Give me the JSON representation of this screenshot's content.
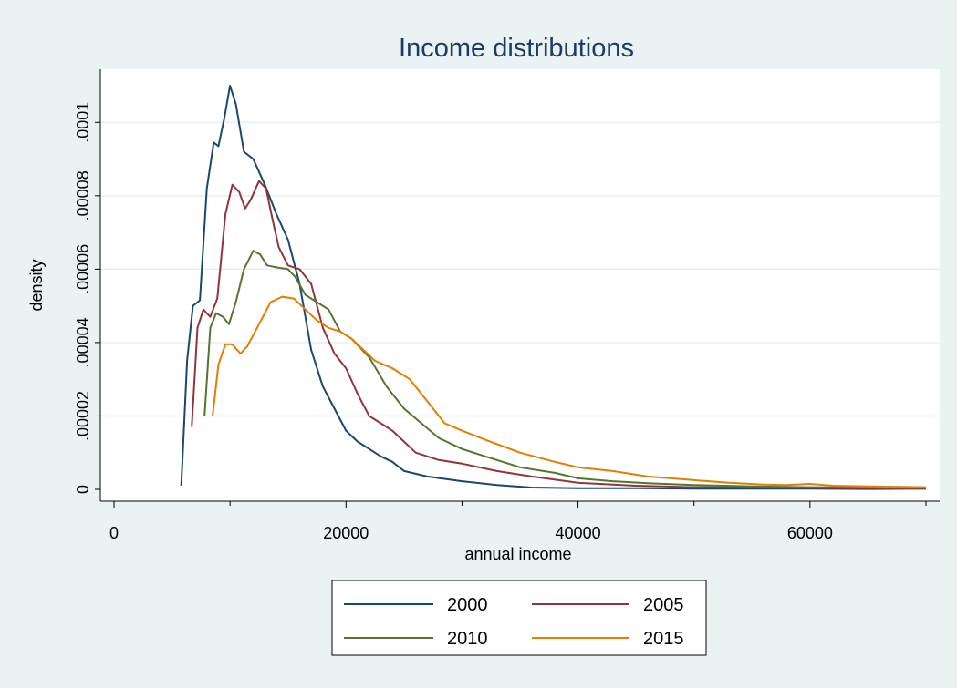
{
  "chart_data": {
    "type": "line",
    "title": "Income distributions",
    "xlabel": "annual income",
    "ylabel": "density",
    "xlim": [
      0,
      70000
    ],
    "ylim": [
      0,
      0.00011
    ],
    "xticks": [
      0,
      20000,
      40000,
      60000
    ],
    "xtick_labels": [
      "0",
      "20000",
      "40000",
      "60000"
    ],
    "yticks": [
      0,
      2e-05,
      4e-05,
      6e-05,
      8e-05,
      0.0001
    ],
    "ytick_labels": [
      "0",
      ".00002",
      ".00004",
      ".00006",
      ".00008",
      ".0001"
    ],
    "grid": true,
    "legend_position": "bottom",
    "series": [
      {
        "name": "2000",
        "color": "#1a476f",
        "points": [
          [
            5800,
            1e-06
          ],
          [
            6300,
            3.5e-05
          ],
          [
            6800,
            5e-05
          ],
          [
            7400,
            5.15e-05
          ],
          [
            8000,
            8.2e-05
          ],
          [
            8600,
            9.45e-05
          ],
          [
            9000,
            9.35e-05
          ],
          [
            9500,
            0.000101
          ],
          [
            10000,
            0.00011
          ],
          [
            10500,
            0.000105
          ],
          [
            11200,
            9.2e-05
          ],
          [
            12000,
            9e-05
          ],
          [
            13000,
            8.3e-05
          ],
          [
            14000,
            7.5e-05
          ],
          [
            15000,
            6.8e-05
          ],
          [
            16000,
            5.6e-05
          ],
          [
            17000,
            3.8e-05
          ],
          [
            18000,
            2.8e-05
          ],
          [
            19000,
            2.2e-05
          ],
          [
            20000,
            1.6e-05
          ],
          [
            21000,
            1.3e-05
          ],
          [
            22000,
            1.1e-05
          ],
          [
            23000,
            9e-06
          ],
          [
            24000,
            7.5e-06
          ],
          [
            25000,
            5e-06
          ],
          [
            27000,
            3.5e-06
          ],
          [
            30000,
            2.2e-06
          ],
          [
            33000,
            1.2e-06
          ],
          [
            36000,
            5e-07
          ],
          [
            40000,
            3e-07
          ],
          [
            45000,
            3e-07
          ],
          [
            50000,
            2e-07
          ],
          [
            55000,
            2e-07
          ],
          [
            60000,
            2e-07
          ],
          [
            65000,
            1e-07
          ],
          [
            70000,
            2e-07
          ]
        ]
      },
      {
        "name": "2005",
        "color": "#90353b",
        "points": [
          [
            6700,
            1.7e-05
          ],
          [
            7200,
            4.4e-05
          ],
          [
            7700,
            4.9e-05
          ],
          [
            8300,
            4.7e-05
          ],
          [
            8900,
            5.2e-05
          ],
          [
            9600,
            7.5e-05
          ],
          [
            10200,
            8.3e-05
          ],
          [
            10800,
            8.1e-05
          ],
          [
            11300,
            7.65e-05
          ],
          [
            11800,
            7.9e-05
          ],
          [
            12500,
            8.4e-05
          ],
          [
            13100,
            8.2e-05
          ],
          [
            13700,
            7.3e-05
          ],
          [
            14200,
            6.6e-05
          ],
          [
            15000,
            6.1e-05
          ],
          [
            16000,
            6e-05
          ],
          [
            17000,
            5.6e-05
          ],
          [
            18000,
            4.4e-05
          ],
          [
            19000,
            3.7e-05
          ],
          [
            20000,
            3.3e-05
          ],
          [
            21000,
            2.6e-05
          ],
          [
            22000,
            2e-05
          ],
          [
            23000,
            1.8e-05
          ],
          [
            24000,
            1.6e-05
          ],
          [
            25000,
            1.3e-05
          ],
          [
            26000,
            1e-05
          ],
          [
            28000,
            8e-06
          ],
          [
            30000,
            7e-06
          ],
          [
            33000,
            5e-06
          ],
          [
            36000,
            3.5e-06
          ],
          [
            40000,
            1.8e-06
          ],
          [
            45000,
            1e-06
          ],
          [
            50000,
            6e-07
          ],
          [
            55000,
            5e-07
          ],
          [
            60000,
            4e-07
          ],
          [
            65000,
            3e-07
          ],
          [
            70000,
            2e-07
          ]
        ]
      },
      {
        "name": "2010",
        "color": "#55752f",
        "points": [
          [
            7800,
            2e-05
          ],
          [
            8300,
            4.4e-05
          ],
          [
            8800,
            4.8e-05
          ],
          [
            9400,
            4.7e-05
          ],
          [
            9900,
            4.5e-05
          ],
          [
            10500,
            5.1e-05
          ],
          [
            11200,
            6e-05
          ],
          [
            12000,
            6.5e-05
          ],
          [
            12600,
            6.4e-05
          ],
          [
            13200,
            6.1e-05
          ],
          [
            14000,
            6.05e-05
          ],
          [
            15000,
            6e-05
          ],
          [
            15600,
            5.8e-05
          ],
          [
            16500,
            5.3e-05
          ],
          [
            17500,
            5.1e-05
          ],
          [
            18500,
            4.9e-05
          ],
          [
            19500,
            4.3e-05
          ],
          [
            20500,
            4.1e-05
          ],
          [
            22000,
            3.6e-05
          ],
          [
            23500,
            2.8e-05
          ],
          [
            25000,
            2.2e-05
          ],
          [
            26500,
            1.8e-05
          ],
          [
            28000,
            1.4e-05
          ],
          [
            30000,
            1.1e-05
          ],
          [
            32000,
            9e-06
          ],
          [
            35000,
            6e-06
          ],
          [
            38000,
            4.5e-06
          ],
          [
            40000,
            3e-06
          ],
          [
            43000,
            2.2e-06
          ],
          [
            46000,
            1.7e-06
          ],
          [
            50000,
            1.2e-06
          ],
          [
            55000,
            8e-07
          ],
          [
            60000,
            6e-07
          ],
          [
            65000,
            5e-07
          ],
          [
            70000,
            4e-07
          ]
        ]
      },
      {
        "name": "2015",
        "color": "#e37e00",
        "points": [
          [
            8500,
            2e-05
          ],
          [
            9000,
            3.4e-05
          ],
          [
            9600,
            3.95e-05
          ],
          [
            10200,
            3.95e-05
          ],
          [
            10900,
            3.7e-05
          ],
          [
            11500,
            3.9e-05
          ],
          [
            12500,
            4.5e-05
          ],
          [
            13500,
            5.1e-05
          ],
          [
            14500,
            5.25e-05
          ],
          [
            15500,
            5.2e-05
          ],
          [
            16500,
            4.9e-05
          ],
          [
            17500,
            4.6e-05
          ],
          [
            18500,
            4.4e-05
          ],
          [
            19500,
            4.3e-05
          ],
          [
            20500,
            4.1e-05
          ],
          [
            21500,
            3.8e-05
          ],
          [
            22500,
            3.5e-05
          ],
          [
            24000,
            3.3e-05
          ],
          [
            25500,
            3e-05
          ],
          [
            27000,
            2.4e-05
          ],
          [
            28500,
            1.8e-05
          ],
          [
            30000,
            1.6e-05
          ],
          [
            32000,
            1.35e-05
          ],
          [
            35000,
            1e-05
          ],
          [
            38000,
            7.5e-06
          ],
          [
            40000,
            6e-06
          ],
          [
            43000,
            5e-06
          ],
          [
            46000,
            3.5e-06
          ],
          [
            50000,
            2.5e-06
          ],
          [
            53000,
            1.8e-06
          ],
          [
            56000,
            1.3e-06
          ],
          [
            58000,
            1.2e-06
          ],
          [
            60000,
            1.5e-06
          ],
          [
            62000,
            1e-06
          ],
          [
            65000,
            8e-07
          ],
          [
            70000,
            6e-07
          ]
        ]
      }
    ]
  }
}
